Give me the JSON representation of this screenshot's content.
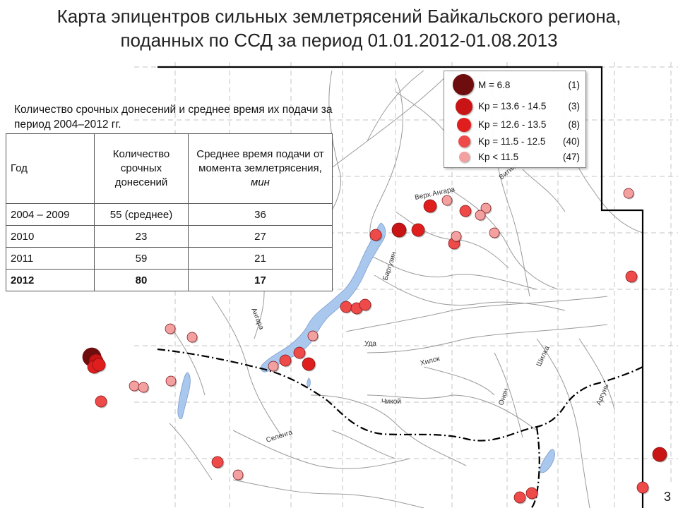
{
  "title": {
    "line1": "Карта эпицентров сильных землетрясений Байкальского региона,",
    "line2": "поданных по ССД за  период 01.01.2012-01.08.2013"
  },
  "map": {
    "labels": {
      "angara": "Ангара",
      "verh_angara": "Верх.Ангара",
      "barguzin": "Баргузин",
      "vitim": "Витим",
      "uda": "Уда",
      "hilok": "Хилок",
      "shilka": "Шилка",
      "argun": "Аргунь",
      "chikoy": "Чикой",
      "onon": "Онон",
      "selenga": "Селенга"
    },
    "colors": {
      "water": "#aac8ee",
      "grid": "#c4c4c4",
      "river": "#9a9a9a",
      "border": "#000000"
    }
  },
  "legend": {
    "rows": [
      {
        "label": "M = 6.8",
        "count": "(1)",
        "color": "#6e0d0d"
      },
      {
        "label": "Kp = 13.6 - 14.5",
        "count": "(3)",
        "color": "#c81414"
      },
      {
        "label": "Kp = 12.6 - 13.5",
        "count": "(8)",
        "color": "#e01e1e"
      },
      {
        "label": "Kp = 11.5 - 12.5",
        "count": "(40)",
        "color": "#ef4a4a"
      },
      {
        "label": "Kp < 11.5",
        "count": "(47)",
        "color": "#f2a0a0"
      }
    ]
  },
  "table": {
    "caption": "Количество срочных донесений и среднее время их подачи за период 2004–2012 гг.",
    "headers": {
      "year": "Год",
      "count": "Количество срочных донесений",
      "time": "Среднее время подачи от момента землетрясения,",
      "unit": "мин"
    },
    "rows": [
      {
        "year": "2004 – 2009",
        "count": "55 (среднее)",
        "time": "36"
      },
      {
        "year": "2010",
        "count": "23",
        "time": "27"
      },
      {
        "year": "2011",
        "count": "59",
        "time": "21"
      },
      {
        "year": "2012",
        "count": "80",
        "time": "17"
      }
    ]
  },
  "page_number": "3"
}
